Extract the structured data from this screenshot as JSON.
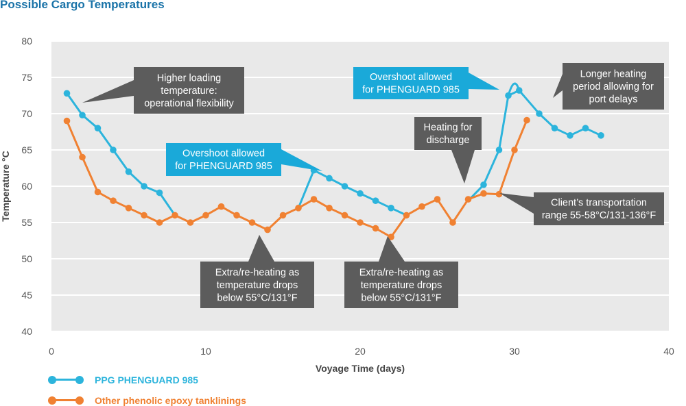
{
  "title": "Possible Cargo Temperatures",
  "colors": {
    "plot_bg": "#e9e9e9",
    "grid": "#ffffff",
    "phenguard": "#2cb4dc",
    "other": "#f08132",
    "callout_dark": "#5c5c5c",
    "callout_blue": "#1aa9d9",
    "axis_text": "#555555"
  },
  "chart_data": {
    "type": "line",
    "xlabel": "Voyage Time (days)",
    "ylabel": "Temperature °C",
    "xlim": [
      0,
      40
    ],
    "ylim": [
      40,
      80
    ],
    "xticks": [
      0,
      10,
      20,
      30,
      40
    ],
    "yticks": [
      40,
      45,
      50,
      55,
      60,
      65,
      70,
      75,
      80
    ],
    "grid": true,
    "legend_position": "bottom-left",
    "series": [
      {
        "name": "PPG PHENGUARD 985",
        "color": "#2cb4dc",
        "segments": [
          {
            "markers": true,
            "points": [
              [
                1,
                72.8
              ],
              [
                2,
                69.8
              ],
              [
                3,
                68
              ],
              [
                4,
                65
              ],
              [
                5,
                62
              ],
              [
                6,
                60
              ],
              [
                7,
                59.1
              ]
            ]
          },
          {
            "markers": false,
            "points": [
              [
                7,
                59.1
              ],
              [
                8,
                56
              ]
            ]
          },
          {
            "markers": false,
            "points": [
              [
                16,
                57
              ],
              [
                17,
                62.2
              ]
            ]
          },
          {
            "markers": true,
            "points": [
              [
                17,
                62.2
              ],
              [
                18,
                61.1
              ],
              [
                19,
                60
              ],
              [
                20,
                59
              ],
              [
                21,
                58
              ],
              [
                22,
                57
              ]
            ]
          },
          {
            "markers": false,
            "points": [
              [
                22,
                57
              ],
              [
                23,
                56
              ]
            ]
          },
          {
            "markers": false,
            "points": [
              [
                27,
                58
              ],
              [
                28,
                60.2
              ]
            ]
          },
          {
            "markers": true,
            "points": [
              [
                28,
                60.2
              ],
              [
                29,
                65
              ],
              [
                29.6,
                72.5
              ],
              [
                30.3,
                73.2
              ],
              [
                31.6,
                70
              ],
              [
                32.6,
                68
              ],
              [
                33.6,
                67
              ],
              [
                34.6,
                68
              ],
              [
                35.6,
                67
              ]
            ]
          }
        ],
        "peak": [
          [
            29.6,
            72.5
          ],
          [
            30.0,
            74
          ],
          [
            30.3,
            73.2
          ]
        ]
      },
      {
        "name": "Other phenolic epoxy tanklinings",
        "color": "#f08132",
        "segments": [
          {
            "markers": true,
            "points": [
              [
                1,
                69
              ],
              [
                2,
                64
              ],
              [
                3,
                59.2
              ],
              [
                4,
                58
              ],
              [
                5,
                57
              ],
              [
                6,
                56
              ],
              [
                7,
                55
              ],
              [
                8,
                56
              ],
              [
                9,
                55
              ],
              [
                10,
                56
              ],
              [
                11,
                57.2
              ],
              [
                12,
                56
              ],
              [
                13,
                55
              ],
              [
                14,
                54
              ],
              [
                15,
                56
              ],
              [
                16,
                57
              ],
              [
                17,
                58.2
              ],
              [
                18,
                57
              ],
              [
                19,
                56
              ],
              [
                20,
                55
              ],
              [
                21,
                54.2
              ],
              [
                22,
                53
              ],
              [
                23,
                56
              ],
              [
                24,
                57.2
              ],
              [
                25,
                58.2
              ],
              [
                26,
                55
              ],
              [
                27,
                58.2
              ],
              [
                28,
                59
              ],
              [
                29,
                58.9
              ],
              [
                30,
                65
              ],
              [
                30.8,
                69.1
              ]
            ]
          }
        ]
      }
    ],
    "annotations": [
      {
        "text": [
          "Higher loading",
          "temperature:",
          "operational flexibility"
        ],
        "style": "dark"
      },
      {
        "text": [
          "Overshoot allowed",
          "for PHENGUARD 985"
        ],
        "style": "blue"
      },
      {
        "text": [
          "Longer heating",
          "period allowing for",
          "port delays"
        ],
        "style": "dark"
      },
      {
        "text": [
          "Heating for",
          "discharge"
        ],
        "style": "dark"
      },
      {
        "text": [
          "Overshoot allowed",
          "for PHENGUARD 985"
        ],
        "style": "blue"
      },
      {
        "text": [
          "Client’s transportation",
          "range 55-58°C/131-136°F"
        ],
        "style": "dark"
      },
      {
        "text": [
          "Extra/re-heating as",
          "temperature drops",
          "below 55°C/131°F"
        ],
        "style": "dark"
      },
      {
        "text": [
          "Extra/re-heating as",
          "temperature drops",
          "below 55°C/131°F"
        ],
        "style": "dark"
      }
    ]
  },
  "legend": {
    "series1_label": "PPG PHENGUARD 985",
    "series2_label": "Other phenolic epoxy tanklinings"
  }
}
